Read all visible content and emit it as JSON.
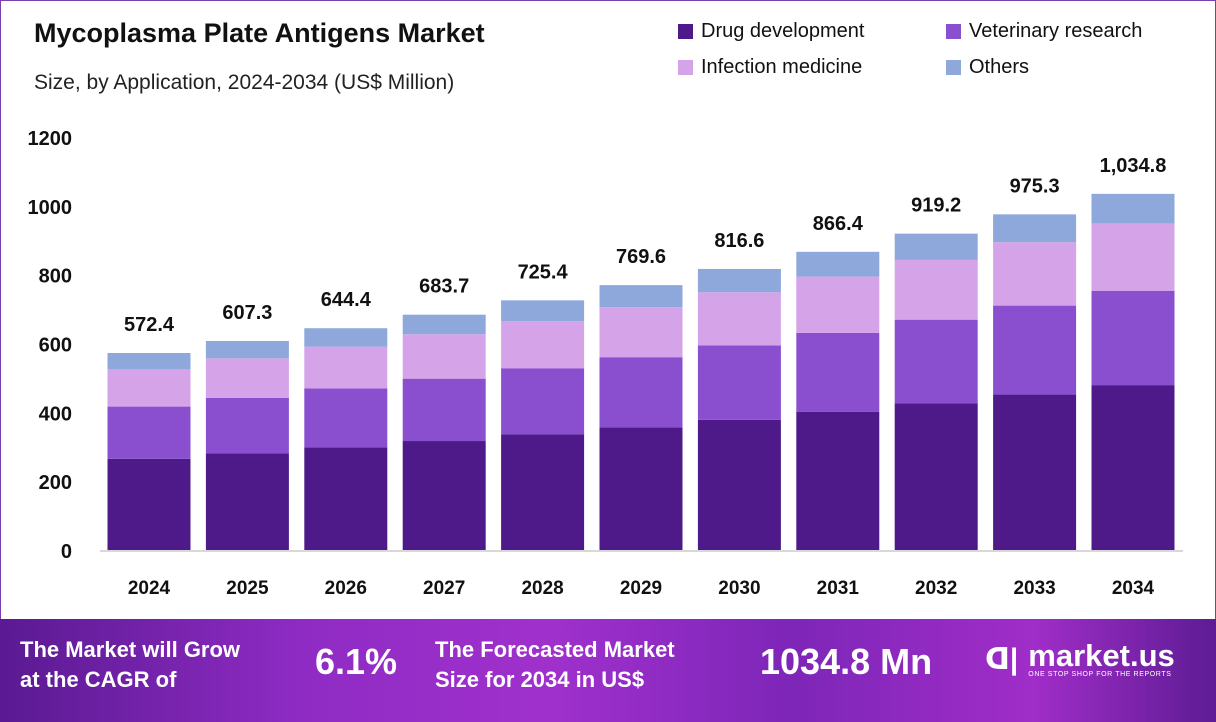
{
  "chart_data": {
    "type": "bar",
    "stacked": true,
    "title": "Mycoplasma Plate Antigens Market",
    "subtitle": "Size, by Application, 2024-2034 (US$ Million)",
    "xlabel": "",
    "ylabel": "",
    "ylim": [
      0,
      1200
    ],
    "yticks": [
      "0",
      "200",
      "400",
      "600",
      "800",
      "1000",
      "1200"
    ],
    "grid": false,
    "legend_position": "top-right",
    "categories": [
      "2024",
      "2025",
      "2026",
      "2027",
      "2028",
      "2029",
      "2030",
      "2031",
      "2032",
      "2033",
      "2034"
    ],
    "totals": [
      572.4,
      607.3,
      644.4,
      683.7,
      725.4,
      769.6,
      816.6,
      866.4,
      919.2,
      975.3,
      1034.8
    ],
    "total_labels": [
      "572.4",
      "607.3",
      "644.4",
      "683.7",
      "725.4",
      "769.6",
      "816.6",
      "866.4",
      "919.2",
      "975.3",
      "1,034.8"
    ],
    "series": [
      {
        "name": "Drug development",
        "color": "#4e1a8a",
        "values": [
          265.0,
          281.2,
          298.4,
          316.6,
          335.9,
          356.3,
          378.1,
          401.1,
          425.6,
          451.6,
          479.1
        ]
      },
      {
        "name": "Veterinary research",
        "color": "#8a4fcf",
        "values": [
          151.7,
          160.9,
          170.8,
          181.2,
          192.2,
          203.9,
          216.4,
          229.6,
          243.6,
          258.5,
          274.2
        ]
      },
      {
        "name": "Infection medicine",
        "color": "#d4a3e8",
        "values": [
          108.2,
          114.8,
          121.8,
          129.2,
          137.1,
          145.5,
          154.3,
          163.7,
          173.7,
          184.3,
          195.6
        ]
      },
      {
        "name": "Others",
        "color": "#8fa8dc",
        "values": [
          47.5,
          50.4,
          53.4,
          56.7,
          60.2,
          63.9,
          67.8,
          72.0,
          76.3,
          80.9,
          85.9
        ]
      }
    ]
  },
  "banner": {
    "cagr_text_line1": "The Market will Grow",
    "cagr_text_line2": "at the CAGR of",
    "cagr_value": "6.1%",
    "forecast_text_line1": "The Forecasted Market",
    "forecast_text_line2": "Size for 2034 in US$",
    "forecast_value": "1034.8 Mn",
    "logo_text": "market.us",
    "logo_tagline": "ONE STOP SHOP FOR THE REPORTS"
  }
}
